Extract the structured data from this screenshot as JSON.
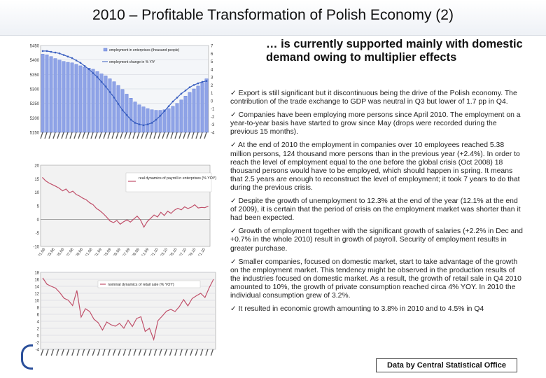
{
  "page": {
    "title": "2010 – Profitable Transformation of Polish Economy (2)",
    "subtitle": "… is currently supported mainly with domestic demand owing to multiplier effects",
    "source_label": "Data by Central Statistical Office"
  },
  "bullets": [
    "✓ Export is still significant but it discontinuous being the drive of the Polish economy. The contribution of the trade exchange to GDP was neutral in Q3 but lower of 1.7 pp in Q4.",
    "✓ Companies have been employing more persons since April 2010. The employment on a year-to-year basis have started to grow since May (drops were recorded during the previous 15 months).",
    "✓ At the end of 2010 the employment in companies over 10 employees reached 5.38 million persons, 124 thousand more persons than in the previous year (+2.4%). In order to reach the level of employment equal to the one before the global crisis (Oct 2008) 18 thousand persons would have to be employed, which should happen in spring. It means that 2.5 years are enough to reconstruct the level of employment; it took 7 years to do that during the previous crisis.",
    "✓ Despite the growth of unemployment to 12.3% at the end of the year (12.1% at the end of 2009), it is certain that the period of crisis on the employment market was shorter than it had been expected.",
    "✓ Growth of employment together with the significant growth of salaries (+2.2% in Dec and +0.7% in the whole 2010) result in growth of payroll. Security of employment results in greater purchase.",
    "✓ Smaller companies, focused on domestic market, start to take advantage of the growth on the employment market. This tendency might be observed in the production results of the industries focused on domestic market. As a result, the growth of retail sale in Q4 2010 amounted to 10%, the growth of private consumption reached circa 4% YOY. In 2010 the individual consumption grew of 3.2%.",
    "✓ It resulted in economic growth amounting to 3.8% in 2010 and to 4.5% in Q4"
  ],
  "chart_data": [
    {
      "type": "line",
      "title": "",
      "legend": [
        "employment in enterprises (thousand people)",
        "employment change in % Y/Y"
      ],
      "y_left_ticks": [
        "5450",
        "5400",
        "5350",
        "5300",
        "5250",
        "5200",
        "5150"
      ],
      "y_right_ticks": [
        "7",
        "6",
        "5",
        "4",
        "3",
        "2",
        "1",
        "0",
        "-1",
        "-2",
        "-3",
        "-4"
      ],
      "ylim_left": [
        5150,
        5450
      ],
      "ylim_right": [
        -4,
        7
      ],
      "x_tick_count": 40,
      "series": [
        {
          "name": "employment in enterprises (thousand people)",
          "color": "#4f6fd8",
          "kind": "bar",
          "values": [
            5420,
            5418,
            5412,
            5405,
            5400,
            5395,
            5392,
            5390,
            5385,
            5380,
            5375,
            5372,
            5368,
            5360,
            5352,
            5345,
            5335,
            5325,
            5312,
            5298,
            5282,
            5268,
            5255,
            5245,
            5238,
            5232,
            5228,
            5226,
            5226,
            5228,
            5232,
            5240,
            5250,
            5262,
            5275,
            5288,
            5300,
            5310,
            5322,
            5335
          ]
        },
        {
          "name": "employment change in % Y/Y",
          "color": "#3a5fc0",
          "kind": "line",
          "values": [
            6.3,
            6.3,
            6.2,
            6.1,
            6.0,
            5.8,
            5.6,
            5.4,
            5.1,
            4.8,
            4.4,
            4.0,
            3.5,
            3.0,
            2.4,
            1.8,
            1.1,
            0.4,
            -0.4,
            -1.2,
            -1.8,
            -2.4,
            -2.8,
            -3.0,
            -3.1,
            -3.0,
            -2.8,
            -2.4,
            -1.9,
            -1.3,
            -0.7,
            -0.1,
            0.4,
            0.9,
            1.3,
            1.7,
            2.0,
            2.2,
            2.4,
            2.5
          ]
        }
      ]
    },
    {
      "type": "line",
      "title": "",
      "legend": [
        "real dynamics of payroll in enterprises (% YOY)"
      ],
      "y_ticks": [
        "20",
        "15",
        "10",
        "5",
        "0",
        "-5",
        "-10"
      ],
      "ylim": [
        -10,
        20
      ],
      "x_labels": [
        "01.08",
        "03.08",
        "05.08",
        "07.08",
        "09.08",
        "11.08",
        "01.09",
        "03.09",
        "05.09",
        "07.09",
        "09.09",
        "11.09",
        "01.10",
        "03.10",
        "05.10",
        "07.10",
        "09.10",
        "11.10"
      ],
      "series": [
        {
          "name": "real dynamics of payroll in enterprises (% YOY)",
          "color": "#c0506a",
          "values": [
            15.5,
            14.2,
            13.4,
            12.8,
            12.2,
            11.5,
            10.5,
            11.2,
            9.8,
            10.4,
            9.2,
            8.6,
            7.8,
            7.2,
            6.1,
            5.4,
            4.0,
            3.2,
            2.1,
            0.8,
            -0.6,
            -1.2,
            -0.4,
            -1.8,
            -0.9,
            -0.2,
            -1.0,
            0.1,
            1.2,
            -0.3,
            -2.9,
            -0.8,
            0.4,
            1.6,
            0.9,
            2.6,
            1.4,
            3.0,
            2.2,
            3.4,
            4.1,
            3.5,
            4.6,
            4.0,
            4.5,
            5.4,
            4.2,
            4.4,
            4.3,
            4.9
          ]
        }
      ]
    },
    {
      "type": "line",
      "title": "",
      "legend": [
        "nominal dynamics of retail sale (% YOY)"
      ],
      "y_ticks": [
        "18",
        "16",
        "14",
        "12",
        "10",
        "8",
        "6",
        "4",
        "2",
        "0",
        "-2",
        "-4"
      ],
      "ylim": [
        -4,
        18
      ],
      "x_tick_count": 34,
      "series": [
        {
          "name": "nominal dynamics of retail sale (% YOY)",
          "color": "#c0506a",
          "values": [
            16.4,
            14.6,
            14.0,
            13.5,
            12.2,
            10.6,
            10.0,
            8.5,
            12.8,
            5.2,
            7.6,
            6.8,
            4.6,
            3.6,
            1.5,
            3.8,
            3.0,
            2.6,
            3.4,
            2.0,
            4.3,
            2.5,
            4.8,
            5.3,
            1.1,
            2.0,
            -1.2,
            4.2,
            5.5,
            6.9,
            7.4,
            6.8,
            8.2,
            10.2,
            8.4,
            10.5,
            11.3,
            12.0,
            10.8,
            13.6,
            16.0
          ]
        }
      ]
    }
  ]
}
